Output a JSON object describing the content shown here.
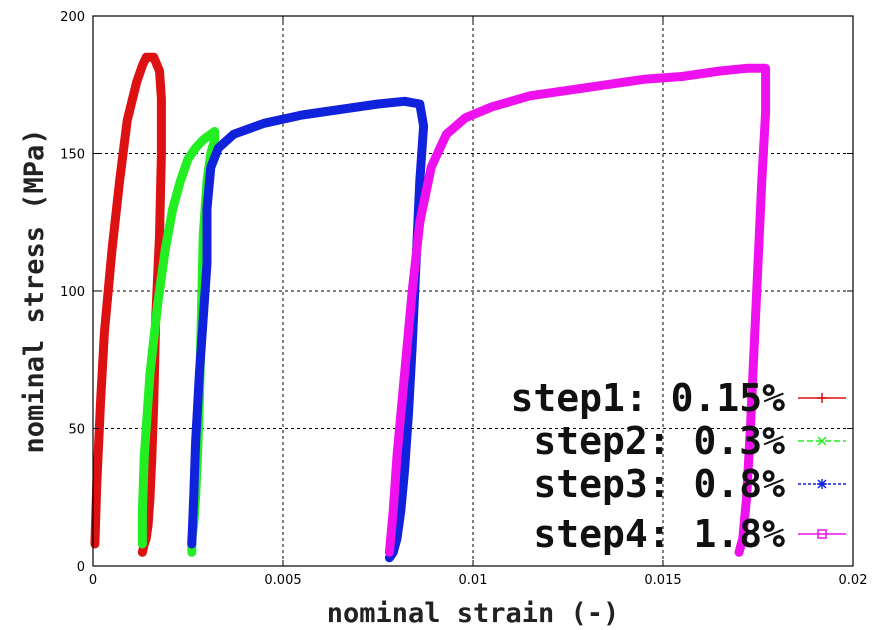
{
  "chart_data": {
    "type": "line",
    "title": "",
    "xlabel": "nominal strain (-)",
    "ylabel": "nominal stress (MPa)",
    "xlim": [
      0,
      0.02
    ],
    "ylim": [
      0,
      200
    ],
    "x_ticks": [
      {
        "value": 0,
        "label": "0"
      },
      {
        "value": 0.005,
        "label": "0.005"
      },
      {
        "value": 0.01,
        "label": "0.01"
      },
      {
        "value": 0.015,
        "label": "0.015"
      },
      {
        "value": 0.02,
        "label": "0.02"
      }
    ],
    "y_ticks": [
      {
        "value": 0,
        "label": "0"
      },
      {
        "value": 50,
        "label": "50"
      },
      {
        "value": 100,
        "label": "100"
      },
      {
        "value": 150,
        "label": "150"
      },
      {
        "value": 200,
        "label": "200"
      }
    ],
    "grid": true,
    "legend_position": "bottom-right",
    "series": [
      {
        "name": "step1: 0.15%",
        "color": "#dd1111",
        "marker": "plus",
        "x": [
          5e-05,
          0.0001,
          0.0002,
          0.0003,
          0.0005,
          0.0007,
          0.0009,
          0.00115,
          0.0013,
          0.0014,
          0.0015,
          0.0016,
          0.00175,
          0.0018,
          0.0018,
          0.00175,
          0.00165,
          0.0016,
          0.00155,
          0.0015,
          0.00145,
          0.0014,
          0.00135,
          0.0013
        ],
        "y": [
          8,
          30,
          60,
          85,
          115,
          140,
          162,
          176,
          182,
          185,
          185,
          185,
          180,
          170,
          150,
          120,
          90,
          60,
          40,
          25,
          15,
          10,
          8,
          5
        ]
      },
      {
        "name": "step2: 0.3%",
        "color": "#22ee22",
        "marker": "x",
        "x": [
          0.0013,
          0.0013,
          0.00135,
          0.0015,
          0.0017,
          0.0019,
          0.0021,
          0.0023,
          0.0025,
          0.0027,
          0.0029,
          0.0031,
          0.0032,
          0.0032,
          0.0031,
          0.003,
          0.0029,
          0.00285,
          0.0028,
          0.00275,
          0.0027,
          0.00265,
          0.0026,
          0.0026
        ],
        "y": [
          8,
          20,
          40,
          70,
          95,
          115,
          130,
          140,
          148,
          152,
          155,
          157,
          158,
          155,
          150,
          140,
          120,
          90,
          60,
          40,
          25,
          15,
          10,
          5
        ]
      },
      {
        "name": "step3: 0.8%",
        "color": "#1122dd",
        "marker": "asterisk",
        "x": [
          0.0026,
          0.00265,
          0.0027,
          0.0028,
          0.0029,
          0.003,
          0.003,
          0.0031,
          0.0033,
          0.0037,
          0.0045,
          0.0055,
          0.0065,
          0.0075,
          0.0082,
          0.0086,
          0.0087,
          0.0086,
          0.0085,
          0.0084,
          0.0083,
          0.0082,
          0.0081,
          0.008,
          0.0079,
          0.0078
        ],
        "y": [
          8,
          25,
          45,
          70,
          90,
          110,
          130,
          145,
          152,
          157,
          161,
          164,
          166,
          168,
          169,
          168,
          160,
          140,
          110,
          80,
          55,
          35,
          20,
          10,
          5,
          3
        ]
      },
      {
        "name": "step4: 1.8%",
        "color": "#ee11ee",
        "marker": "square",
        "x": [
          0.0078,
          0.0079,
          0.008,
          0.0082,
          0.0084,
          0.0086,
          0.0089,
          0.0093,
          0.0098,
          0.0105,
          0.0115,
          0.0125,
          0.0135,
          0.0145,
          0.0155,
          0.0165,
          0.0172,
          0.0177,
          0.0177,
          0.0176,
          0.0175,
          0.0174,
          0.0173,
          0.0172,
          0.0171,
          0.017
        ],
        "y": [
          5,
          20,
          40,
          70,
          100,
          125,
          145,
          157,
          163,
          167,
          171,
          173,
          175,
          177,
          178,
          180,
          181,
          181,
          165,
          140,
          110,
          80,
          50,
          25,
          10,
          5
        ]
      }
    ]
  }
}
